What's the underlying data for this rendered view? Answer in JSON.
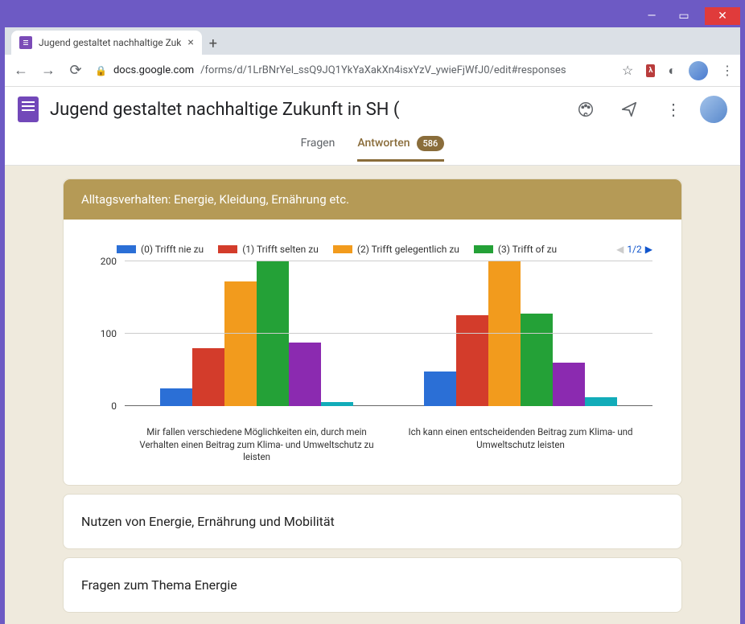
{
  "window": {
    "title": "Jugend gestaltet nachhaltige Zuk"
  },
  "browser": {
    "url_host": "docs.google.com",
    "url_path": "/forms/d/1LrBNrYel_ssQ9JQ1YkYaXakXn4isxYzV_ywieFjWfJ0/edit#responses"
  },
  "forms_header": {
    "title": "Jugend gestaltet nachhaltige Zukunft in SH ("
  },
  "tabs": {
    "questions": "Fragen",
    "responses": "Antworten",
    "badge": "586"
  },
  "section_a": {
    "header": "Alltagsverhalten: Energie, Kleidung, Ernährung etc.",
    "chart": {
      "type": "grouped_bar",
      "series": [
        {
          "label": "(0) Trifft nie zu",
          "color": "#2b6fd6"
        },
        {
          "label": "(1) Trifft selten zu",
          "color": "#d33c2b"
        },
        {
          "label": "(2) Trifft gelegentlich zu",
          "color": "#f29b1d"
        },
        {
          "label": "(3) Trifft of zu",
          "color": "#24a137"
        }
      ],
      "extra_colors": [
        "#8b2ab0",
        "#12acb9"
      ],
      "ylim": [
        0,
        200
      ],
      "ytick_step": 100,
      "grid_color": "#cccccc",
      "label_fontsize": 12,
      "pager": {
        "current": 1,
        "total": 2,
        "text": "1/2"
      },
      "groups": [
        {
          "label": "Mir fallen verschiedene Möglichkeiten ein, durch mein Verhalten einen Beitrag zum Klima- und Umweltschutz zu leisten",
          "values": [
            25,
            80,
            172,
            212,
            88,
            6
          ]
        },
        {
          "label": "Ich kann einen entscheidenden Beitrag zum Klima- und Umweltschutz leisten",
          "values": [
            48,
            126,
            212,
            128,
            60,
            12
          ]
        }
      ]
    }
  },
  "section_b": {
    "title": "Nutzen von Energie, Ernährung und Mobilität"
  },
  "section_c": {
    "title": "Fragen zum Thema Energie"
  }
}
